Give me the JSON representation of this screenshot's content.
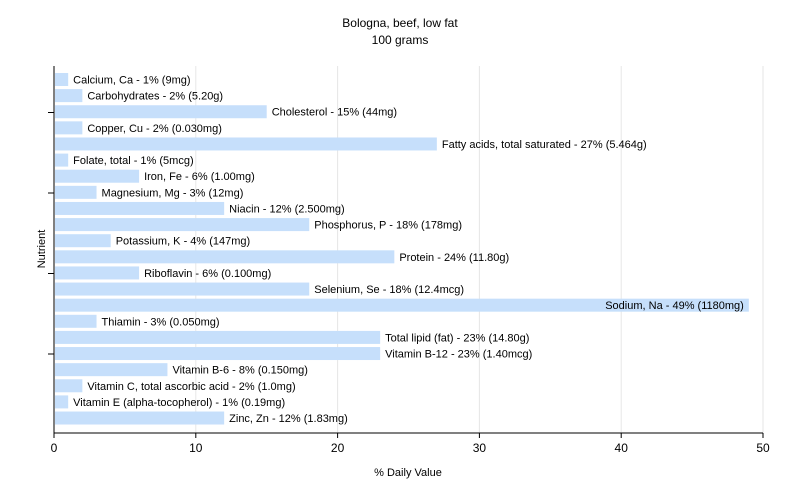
{
  "chart_data": {
    "type": "bar",
    "orientation": "horizontal",
    "title": "Bologna, beef, low fat",
    "subtitle": "100 grams",
    "xlabel": "% Daily Value",
    "ylabel": "Nutrient",
    "xlim": [
      0,
      50
    ],
    "xticks": [
      "0",
      "10",
      "20",
      "30",
      "40",
      "50"
    ],
    "grid": true,
    "bar_color": "#c6dffb",
    "categories": [
      "Calcium, Ca",
      "Carbohydrates",
      "Cholesterol",
      "Copper, Cu",
      "Fatty acids, total saturated",
      "Folate, total",
      "Iron, Fe",
      "Magnesium, Mg",
      "Niacin",
      "Phosphorus, P",
      "Potassium, K",
      "Protein",
      "Riboflavin",
      "Selenium, Se",
      "Sodium, Na",
      "Thiamin",
      "Total lipid (fat)",
      "Vitamin B-12",
      "Vitamin B-6",
      "Vitamin C, total ascorbic acid",
      "Vitamin E (alpha-tocopherol)",
      "Zinc, Zn"
    ],
    "values": [
      1,
      2,
      15,
      2,
      27,
      1,
      6,
      3,
      12,
      18,
      4,
      24,
      6,
      18,
      49,
      3,
      23,
      23,
      8,
      2,
      1,
      12
    ],
    "labels": [
      "Calcium, Ca - 1% (9mg)",
      "Carbohydrates - 2% (5.20g)",
      "Cholesterol - 15% (44mg)",
      "Copper, Cu - 2% (0.030mg)",
      "Fatty acids, total saturated - 27% (5.464g)",
      "Folate, total - 1% (5mcg)",
      "Iron, Fe - 6% (1.00mg)",
      "Magnesium, Mg - 3% (12mg)",
      "Niacin - 12% (2.500mg)",
      "Phosphorus, P - 18% (178mg)",
      "Potassium, K - 4% (147mg)",
      "Protein - 24% (11.80g)",
      "Riboflavin - 6% (0.100mg)",
      "Selenium, Se - 18% (12.4mcg)",
      "Sodium, Na - 49% (1180mg)",
      "Thiamin - 3% (0.050mg)",
      "Total lipid (fat) - 23% (14.80g)",
      "Vitamin B-12 - 23% (1.40mcg)",
      "Vitamin B-6 - 8% (0.150mg)",
      "Vitamin C, total ascorbic acid - 2% (1.0mg)",
      "Vitamin E (alpha-tocopherol) - 1% (0.19mg)",
      "Zinc, Zn - 12% (1.83mg)"
    ]
  }
}
